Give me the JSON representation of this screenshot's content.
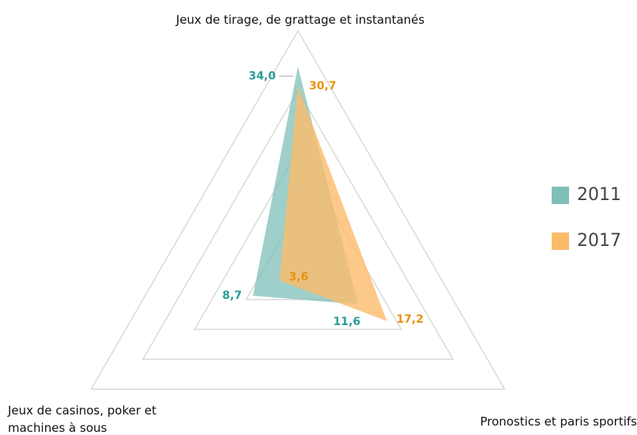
{
  "chart_data": {
    "type": "radar",
    "categories": [
      "Jeux de tirage, de grattage et instantanés",
      "Pronostics et paris sportifs",
      "Jeux de casinos, poker et machines à sous"
    ],
    "series": [
      {
        "name": "2011",
        "color": "#7fbfb8",
        "label_color": "#2a9d98",
        "values": [
          34.0,
          11.6,
          8.7
        ],
        "value_labels": [
          "34,0",
          "11,6",
          "8,7"
        ]
      },
      {
        "name": "2017",
        "color": "#fbbc6a",
        "label_color": "#e8940f",
        "values": [
          30.7,
          17.2,
          3.6
        ],
        "value_labels": [
          "30,7",
          "17,2",
          "3,6"
        ]
      }
    ],
    "ylim": [
      0,
      40
    ],
    "yticks": [
      0,
      10,
      20,
      30,
      40
    ],
    "grid": true,
    "legend": "right"
  }
}
